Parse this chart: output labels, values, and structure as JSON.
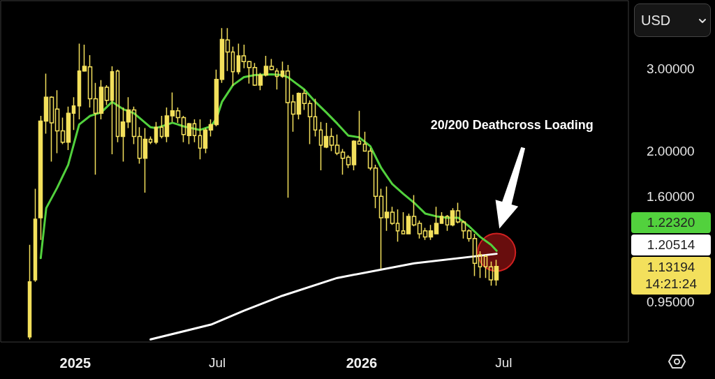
{
  "chart_data": {
    "type": "candlestick",
    "ylabel": "USD",
    "log": true,
    "marker": "none",
    "line_style": "solid",
    "x": [
      "2024-11-04",
      "2024-11-11",
      "2024-11-18",
      "2024-11-25",
      "2024-12-02",
      "2024-12-09",
      "2024-12-16",
      "2024-12-23",
      "2024-12-30",
      "2025-01-06",
      "2025-01-13",
      "2025-01-20",
      "2025-01-27",
      "2025-02-03",
      "2025-02-10",
      "2025-02-17",
      "2025-02-24",
      "2025-03-03",
      "2025-03-10",
      "2025-03-17",
      "2025-03-24",
      "2025-03-31",
      "2025-04-07",
      "2025-04-14",
      "2025-04-21",
      "2025-04-28",
      "2025-05-05",
      "2025-05-12",
      "2025-05-19",
      "2025-05-26",
      "2025-06-02",
      "2025-06-09",
      "2025-06-16",
      "2025-06-23",
      "2025-06-30",
      "2025-07-07",
      "2025-07-14",
      "2025-07-21",
      "2025-07-28",
      "2025-08-04",
      "2025-08-11",
      "2025-08-18",
      "2025-08-25",
      "2025-09-01",
      "2025-09-08",
      "2025-09-15",
      "2025-09-22",
      "2025-09-29",
      "2025-10-06",
      "2025-10-13",
      "2025-10-20",
      "2025-10-27",
      "2025-11-03",
      "2025-11-10",
      "2025-11-17",
      "2025-11-24",
      "2025-12-01",
      "2025-12-08",
      "2025-12-15",
      "2025-12-22",
      "2025-12-29",
      "2026-01-05",
      "2026-01-12",
      "2026-01-19",
      "2026-01-26",
      "2026-02-02",
      "2026-02-09",
      "2026-02-16",
      "2026-02-23",
      "2026-03-02",
      "2026-03-09",
      "2026-03-16",
      "2026-03-23",
      "2026-03-30",
      "2026-04-06",
      "2026-04-13",
      "2026-04-20",
      "2026-04-27",
      "2026-05-04",
      "2026-05-11",
      "2026-05-18",
      "2026-05-25",
      "2026-06-01",
      "2026-06-08",
      "2026-06-15",
      "2026-06-22"
    ],
    "xlim": [
      "2024-09-28",
      "2026-12-07"
    ],
    "xticks": [
      {
        "value": "2025-01-01",
        "label": "2025"
      },
      {
        "value": "2025-07-01",
        "label": "Jul"
      },
      {
        "value": "2026-01-01",
        "label": "2026"
      },
      {
        "value": "2026-07-01",
        "label": "Jul"
      }
    ],
    "ylim": [
      0.78,
      4.2
    ],
    "yticks": [
      {
        "value": 0.95,
        "label": "0.95000"
      },
      {
        "value": 1.6,
        "label": "1.60000"
      },
      {
        "value": 2,
        "label": "2.00000"
      },
      {
        "value": 3,
        "label": "3.00000"
      }
    ],
    "series": [
      {
        "color": "#f3e05c",
        "ohlc": [
          [
            0.8,
            1.26,
            0.79,
            1.05
          ],
          [
            1.06,
            1.66,
            1.05,
            1.43
          ],
          [
            1.44,
            2.38,
            1.29,
            2.32
          ],
          [
            2.32,
            2.93,
            2.18,
            2.61
          ],
          [
            2.61,
            2.62,
            1.9,
            2.3
          ],
          [
            2.46,
            2.7,
            1.98,
            2.21
          ],
          [
            2.21,
            2.36,
            2.07,
            2.09
          ],
          [
            2.09,
            2.49,
            2.01,
            2.41
          ],
          [
            2.41,
            2.61,
            2.22,
            2.5
          ],
          [
            2.5,
            3.4,
            2.34,
            2.97
          ],
          [
            2.97,
            3.38,
            2.96,
            3.04
          ],
          [
            3.03,
            3.21,
            2.48,
            2.59
          ],
          [
            2.59,
            2.8,
            1.78,
            2.41
          ],
          [
            2.41,
            2.84,
            2.34,
            2.74
          ],
          [
            2.74,
            2.77,
            2.51,
            2.57
          ],
          [
            2.57,
            3.04,
            1.97,
            2.96
          ],
          [
            2.97,
            2.99,
            2.09,
            2.15
          ],
          [
            2.15,
            2.48,
            1.9,
            2.31
          ],
          [
            2.31,
            2.61,
            2.24,
            2.45
          ],
          [
            2.45,
            2.49,
            2.07,
            2.15
          ],
          [
            2.15,
            2.25,
            1.88,
            1.93
          ],
          [
            1.93,
            2.24,
            1.63,
            2.12
          ],
          [
            2.12,
            2.15,
            2.07,
            2.09
          ],
          [
            2.09,
            2.31,
            2.07,
            2.25
          ],
          [
            2.25,
            2.38,
            2.13,
            2.15
          ],
          [
            2.15,
            2.48,
            2.09,
            2.38
          ],
          [
            2.38,
            2.67,
            2.31,
            2.44
          ],
          [
            2.44,
            2.48,
            2.3,
            2.36
          ],
          [
            2.36,
            2.38,
            2.09,
            2.17
          ],
          [
            2.16,
            2.3,
            2.07,
            2.29
          ],
          [
            2.29,
            2.34,
            2.09,
            2.16
          ],
          [
            2.16,
            2.34,
            1.92,
            2.03
          ],
          [
            2.03,
            2.24,
            1.98,
            2.22
          ],
          [
            2.22,
            2.34,
            2.15,
            2.28
          ],
          [
            2.28,
            2.99,
            2.26,
            2.85
          ],
          [
            2.85,
            3.67,
            2.8,
            3.47
          ],
          [
            3.46,
            3.67,
            2.97,
            3.26
          ],
          [
            3.26,
            3.35,
            2.76,
            2.96
          ],
          [
            2.96,
            3.4,
            2.92,
            3.2
          ],
          [
            3.2,
            3.38,
            3.01,
            3.11
          ],
          [
            3.11,
            3.12,
            2.79,
            3.02
          ],
          [
            3.02,
            3.09,
            2.76,
            2.77
          ],
          [
            2.77,
            2.94,
            2.7,
            2.91
          ],
          [
            2.91,
            3.2,
            2.89,
            3.04
          ],
          [
            3.04,
            3.15,
            2.98,
            2.99
          ],
          [
            2.97,
            3.01,
            2.71,
            2.89
          ],
          [
            2.89,
            3.11,
            2.87,
            2.97
          ],
          [
            2.97,
            3.06,
            1.59,
            2.54
          ],
          [
            2.55,
            2.64,
            2.2,
            2.4
          ],
          [
            2.4,
            2.67,
            2.34,
            2.66
          ],
          [
            2.66,
            2.71,
            2.45,
            2.53
          ],
          [
            2.53,
            2.57,
            2.07,
            2.37
          ],
          [
            2.37,
            2.59,
            2.15,
            2.22
          ],
          [
            2.22,
            2.31,
            1.82,
            2.06
          ],
          [
            2.04,
            2.3,
            2.03,
            2.15
          ],
          [
            2.15,
            2.24,
            2.0,
            2.06
          ],
          [
            2.06,
            2.17,
            1.96,
            1.98
          ],
          [
            1.99,
            2.02,
            1.78,
            1.93
          ],
          [
            1.94,
            1.96,
            1.84,
            1.87
          ],
          [
            1.87,
            2.11,
            1.82,
            2.1
          ],
          [
            2.1,
            2.44,
            2.07,
            2.07
          ],
          [
            2.07,
            2.2,
            2.0,
            2.0
          ],
          [
            2.0,
            2.03,
            1.82,
            1.84
          ],
          [
            1.84,
            1.87,
            1.51,
            1.6
          ],
          [
            1.6,
            1.66,
            1.12,
            1.44
          ],
          [
            1.44,
            1.68,
            1.35,
            1.48
          ],
          [
            1.48,
            1.52,
            1.39,
            1.4
          ],
          [
            1.4,
            1.5,
            1.28,
            1.35
          ],
          [
            1.35,
            1.48,
            1.33,
            1.33
          ],
          [
            1.33,
            1.47,
            1.33,
            1.45
          ],
          [
            1.45,
            1.61,
            1.38,
            1.39
          ],
          [
            1.4,
            1.42,
            1.3,
            1.33
          ],
          [
            1.35,
            1.37,
            1.29,
            1.31
          ],
          [
            1.31,
            1.39,
            1.29,
            1.35
          ],
          [
            1.33,
            1.52,
            1.33,
            1.4
          ],
          [
            1.4,
            1.48,
            1.4,
            1.45
          ],
          [
            1.45,
            1.46,
            1.35,
            1.39
          ],
          [
            1.39,
            1.51,
            1.38,
            1.49
          ],
          [
            1.49,
            1.55,
            1.4,
            1.41
          ],
          [
            1.41,
            1.42,
            1.3,
            1.35
          ],
          [
            1.35,
            1.36,
            1.28,
            1.3
          ],
          [
            1.3,
            1.33,
            1.08,
            1.15
          ],
          [
            1.2,
            1.22,
            1.07,
            1.13
          ],
          [
            1.19,
            1.2,
            1.07,
            1.13
          ],
          [
            1.13,
            1.16,
            1.03,
            1.06
          ],
          [
            1.06,
            1.17,
            1.03,
            1.13194
          ]
        ]
      },
      {
        "type": "line",
        "color": "#52d13d",
        "x": [
          "2024-11-18",
          "2024-11-25",
          "2024-12-09",
          "2024-12-23",
          "2025-01-06",
          "2025-01-20",
          "2025-02-03",
          "2025-02-17",
          "2025-03-03",
          "2025-03-17",
          "2025-04-07",
          "2025-04-14",
          "2025-05-05",
          "2025-05-19",
          "2025-06-09",
          "2025-06-23",
          "2025-06-30",
          "2025-07-07",
          "2025-07-21",
          "2025-08-04",
          "2025-08-18",
          "2025-09-08",
          "2025-09-22",
          "2025-09-29",
          "2025-10-20",
          "2025-11-03",
          "2025-11-17",
          "2025-12-01",
          "2025-12-15",
          "2025-12-29",
          "2026-01-12",
          "2026-01-26",
          "2026-02-09",
          "2026-02-23",
          "2026-03-09",
          "2026-03-23",
          "2026-04-06",
          "2026-04-20",
          "2026-05-04",
          "2026-05-18",
          "2026-06-01",
          "2026-06-15",
          "2026-06-22"
        ],
        "values": [
          1.18,
          1.51,
          1.67,
          1.87,
          2.28,
          2.38,
          2.42,
          2.55,
          2.46,
          2.41,
          2.25,
          2.24,
          2.3,
          2.26,
          2.22,
          2.26,
          2.35,
          2.55,
          2.77,
          2.88,
          2.91,
          2.92,
          2.91,
          2.88,
          2.71,
          2.55,
          2.42,
          2.29,
          2.16,
          2.14,
          2.05,
          1.84,
          1.7,
          1.62,
          1.55,
          1.47,
          1.45,
          1.44,
          1.44,
          1.38,
          1.31,
          1.26,
          1.2232
        ]
      },
      {
        "type": "line",
        "color": "#ffffff",
        "x": [
          "2025-04-07",
          "2025-06-23",
          "2025-08-04",
          "2025-09-22",
          "2025-12-01",
          "2026-03-09",
          "2026-06-22"
        ],
        "values": [
          0.79,
          0.85,
          0.91,
          0.98,
          1.07,
          1.15,
          1.20514
        ]
      }
    ],
    "annotations": [
      "20/200 Deathcross Loading",
      "1.22320",
      "1.20514",
      "1.13194",
      "14:21:24"
    ]
  }
}
